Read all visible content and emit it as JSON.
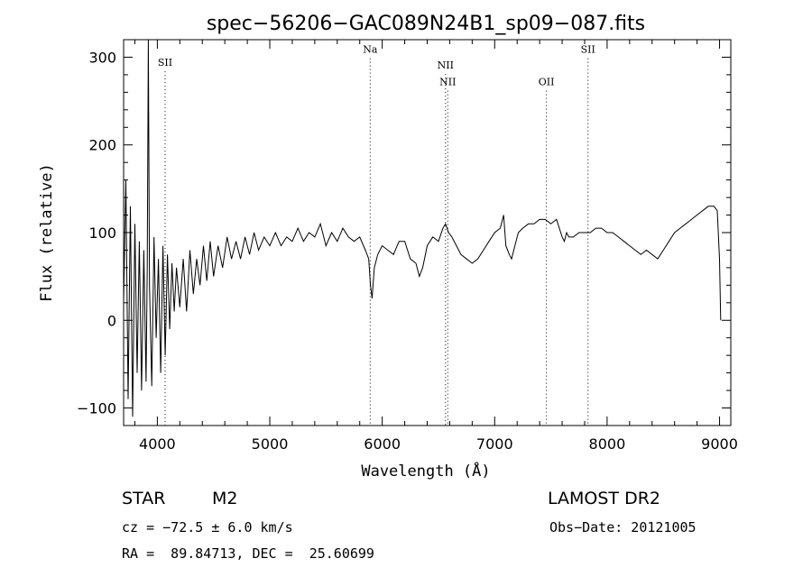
{
  "chart_data": {
    "type": "line",
    "title": "spec−56206−GAC089N24B1_sp09−087.fits",
    "xlabel": "Wavelength (Å)",
    "ylabel": "Flux (relative)",
    "xlim": [
      3700,
      9100
    ],
    "ylim": [
      -120,
      320
    ],
    "xticks": [
      4000,
      5000,
      6000,
      7000,
      8000,
      9000
    ],
    "yticks": [
      -100,
      0,
      100,
      200,
      300
    ],
    "grid": false,
    "series": [
      {
        "x": [
          3700,
          3720,
          3740,
          3760,
          3780,
          3800,
          3820,
          3840,
          3860,
          3880,
          3900,
          3910,
          3920,
          3930,
          3950,
          3970,
          3990,
          4010,
          4030,
          4050,
          4070,
          4090,
          4110,
          4130,
          4150,
          4170,
          4200,
          4230,
          4260,
          4290,
          4320,
          4350,
          4380,
          4410,
          4440,
          4470,
          4500,
          4540,
          4580,
          4620,
          4660,
          4700,
          4740,
          4780,
          4820,
          4860,
          4900,
          4950,
          5000,
          5050,
          5100,
          5150,
          5200,
          5250,
          5300,
          5350,
          5400,
          5450,
          5500,
          5550,
          5600,
          5650,
          5700,
          5750,
          5800,
          5850,
          5880,
          5895,
          5910,
          5930,
          5960,
          6000,
          6050,
          6100,
          6150,
          6200,
          6250,
          6300,
          6330,
          6360,
          6400,
          6450,
          6500,
          6540,
          6563,
          6590,
          6620,
          6660,
          6700,
          6750,
          6800,
          6850,
          6900,
          6950,
          7000,
          7050,
          7080,
          7100,
          7130,
          7150,
          7180,
          7210,
          7250,
          7300,
          7350,
          7400,
          7450,
          7500,
          7550,
          7600,
          7620,
          7640,
          7660,
          7700,
          7750,
          7800,
          7850,
          7900,
          7950,
          8000,
          8050,
          8100,
          8150,
          8200,
          8250,
          8300,
          8350,
          8400,
          8450,
          8500,
          8550,
          8600,
          8650,
          8700,
          8750,
          8800,
          8850,
          8900,
          8950,
          8980,
          9000,
          9010
        ],
        "y": [
          20,
          160,
          -90,
          130,
          -110,
          110,
          -60,
          90,
          -80,
          80,
          -70,
          60,
          320,
          40,
          -75,
          95,
          -20,
          70,
          -60,
          85,
          -40,
          75,
          -10,
          65,
          10,
          60,
          15,
          70,
          10,
          80,
          30,
          70,
          40,
          85,
          45,
          90,
          50,
          85,
          60,
          95,
          70,
          90,
          70,
          95,
          75,
          100,
          80,
          95,
          85,
          100,
          85,
          95,
          90,
          105,
          90,
          100,
          95,
          110,
          85,
          100,
          90,
          105,
          95,
          90,
          95,
          80,
          70,
          40,
          25,
          60,
          75,
          85,
          80,
          75,
          90,
          90,
          70,
          65,
          50,
          60,
          85,
          95,
          90,
          105,
          110,
          100,
          95,
          85,
          75,
          70,
          65,
          70,
          80,
          90,
          100,
          105,
          120,
          85,
          75,
          70,
          85,
          100,
          105,
          110,
          110,
          115,
          115,
          110,
          115,
          95,
          90,
          100,
          95,
          95,
          100,
          100,
          100,
          105,
          105,
          100,
          100,
          95,
          90,
          85,
          80,
          75,
          80,
          75,
          70,
          80,
          90,
          100,
          105,
          110,
          115,
          120,
          125,
          130,
          130,
          125,
          70,
          0
        ]
      }
    ],
    "annotations": [
      {
        "x": 4069,
        "label": "SII",
        "y": 290
      },
      {
        "x": 5893,
        "label": "Na",
        "y": 305
      },
      {
        "x": 6563,
        "label": "NII",
        "y": 287
      },
      {
        "x": 6583,
        "label": "NII",
        "y": 268
      },
      {
        "x": 7460,
        "label": "OII",
        "y": 268
      },
      {
        "x": 7830,
        "label": "SII",
        "y": 305
      }
    ]
  },
  "info": {
    "object_class": "STAR",
    "subclass": "M2",
    "survey": "LAMOST DR2",
    "cz": "cz = −72.5 ± 6.0 km/s",
    "obs_date": "Obs−Date: 20121005",
    "radec": "RA =  89.84713, DEC =  25.60699"
  }
}
